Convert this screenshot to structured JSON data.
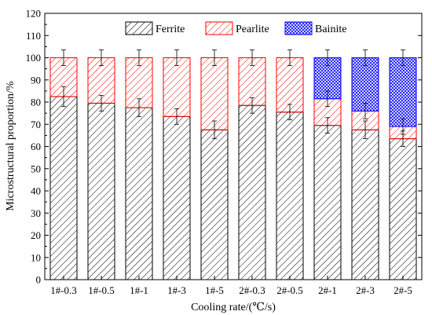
{
  "chart_data": {
    "type": "bar",
    "stacked": true,
    "title": "",
    "xlabel": "Cooling rate/(℃/s)",
    "ylabel": "Microstructural proportion/%",
    "ylim": [
      0,
      120
    ],
    "yticks": [
      0,
      10,
      20,
      30,
      40,
      50,
      60,
      70,
      80,
      90,
      100,
      110,
      120
    ],
    "grid": false,
    "legend_position": "top",
    "categories": [
      "1#-0.3",
      "1#-0.5",
      "1#-1",
      "1#-3",
      "1#-5",
      "2#-0.3",
      "2#-0.5",
      "2#-1",
      "2#-3",
      "2#-5"
    ],
    "series": [
      {
        "name": "Ferrite",
        "color": "#000000",
        "pattern": "diagonal-hatch",
        "values": [
          82.5,
          79.5,
          77.5,
          73.5,
          67.5,
          78.5,
          75.5,
          69.5,
          67.5,
          63.5
        ],
        "error": [
          4.5,
          3.5,
          4,
          3.5,
          4,
          3.5,
          3.5,
          3.5,
          4,
          3.5
        ]
      },
      {
        "name": "Pearlite",
        "color": "#ff0000",
        "pattern": "diagonal-hatch",
        "values": [
          17.5,
          20.5,
          22.5,
          26.5,
          32.5,
          21.5,
          24.5,
          12,
          8.5,
          5.5
        ],
        "error": [
          3.5,
          3.5,
          3.5,
          3.5,
          3.5,
          3.5,
          3.5,
          3.5,
          3.5,
          3.5
        ]
      },
      {
        "name": "Bainite",
        "color": "#0000ff",
        "pattern": "crosshatch",
        "values": [
          0,
          0,
          0,
          0,
          0,
          0,
          0,
          18.5,
          24,
          31
        ],
        "error": [
          0,
          0,
          0,
          0,
          0,
          0,
          0,
          3.5,
          3.5,
          3.5
        ]
      }
    ]
  }
}
